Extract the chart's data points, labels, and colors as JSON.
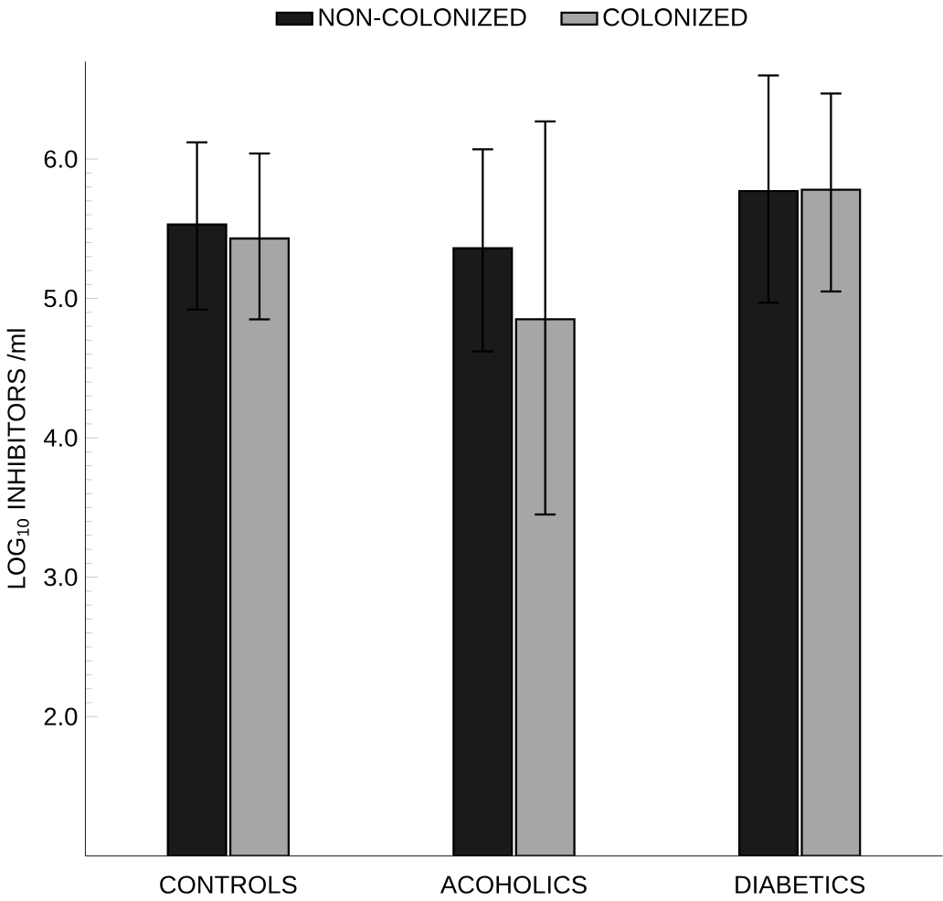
{
  "chart_data": {
    "type": "bar",
    "ylabel": "LOG$_{10}$ INHIBITORS /ml",
    "categories": [
      "CONTROLS",
      "ACOHOLICS",
      "DIABETICS"
    ],
    "series": [
      {
        "name": "NON-COLONIZED",
        "color": "#1a1a1a",
        "values": [
          5.53,
          5.36,
          5.77
        ],
        "errors": [
          [
            4.92,
            6.12
          ],
          [
            4.62,
            6.07
          ],
          [
            4.97,
            6.6
          ]
        ]
      },
      {
        "name": "COLONIZED",
        "color": "#a6a6a6",
        "values": [
          5.43,
          4.85,
          5.78
        ],
        "errors": [
          [
            4.85,
            6.04
          ],
          [
            3.45,
            6.27
          ],
          [
            5.05,
            6.47
          ]
        ]
      }
    ],
    "ylim": [
      1.0,
      6.7
    ],
    "yticks": [
      {
        "value": 2,
        "label": "2.0"
      },
      {
        "value": 3,
        "label": "3.0"
      },
      {
        "value": 4,
        "label": "4.0"
      },
      {
        "value": 5,
        "label": "5.0"
      },
      {
        "value": 6,
        "label": "6.0"
      }
    ],
    "grid": false,
    "legend": "top"
  }
}
